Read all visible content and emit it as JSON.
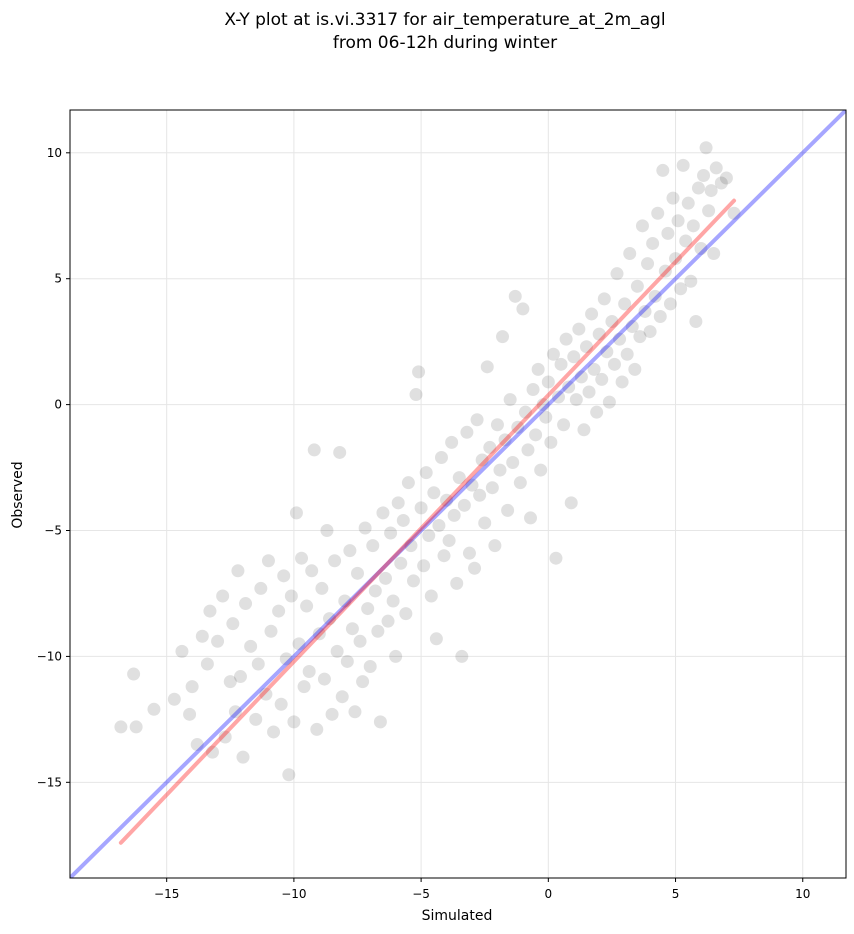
{
  "chart_data": {
    "type": "scatter",
    "title": "X-Y plot at is.vi.3317 for air_temperature_at_2m_agl",
    "subtitle": "from 06-12h during winter",
    "xlabel": "Simulated",
    "ylabel": "Observed",
    "xlim": [
      -18.8,
      11.7
    ],
    "ylim": [
      -18.8,
      11.7
    ],
    "xticks": [
      -15,
      -10,
      -5,
      0,
      5,
      10
    ],
    "yticks": [
      -15,
      -10,
      -5,
      0,
      5,
      10
    ],
    "xtick_labels": [
      "−15",
      "−10",
      "−5",
      "0",
      "5",
      "10"
    ],
    "ytick_labels": [
      "−15",
      "−10",
      "−5",
      "0",
      "5",
      "10"
    ],
    "grid": true,
    "colors": {
      "points": "#000000",
      "regression_line": "#ff0000",
      "identity_line": "#0000ff",
      "grid": "#e6e6e6"
    },
    "points": [
      [
        -16.8,
        -12.8
      ],
      [
        -16.3,
        -10.7
      ],
      [
        -16.2,
        -12.8
      ],
      [
        -15.5,
        -12.1
      ],
      [
        -14.7,
        -11.7
      ],
      [
        -14.4,
        -9.8
      ],
      [
        -14.1,
        -12.3
      ],
      [
        -14.0,
        -11.2
      ],
      [
        -13.8,
        -13.5
      ],
      [
        -13.6,
        -9.2
      ],
      [
        -13.4,
        -10.3
      ],
      [
        -13.3,
        -8.2
      ],
      [
        -13.2,
        -13.8
      ],
      [
        -13.0,
        -9.4
      ],
      [
        -12.8,
        -7.6
      ],
      [
        -12.7,
        -13.2
      ],
      [
        -12.5,
        -11.0
      ],
      [
        -12.4,
        -8.7
      ],
      [
        -12.3,
        -12.2
      ],
      [
        -12.2,
        -6.6
      ],
      [
        -12.1,
        -10.8
      ],
      [
        -12.0,
        -14.0
      ],
      [
        -11.9,
        -7.9
      ],
      [
        -11.7,
        -9.6
      ],
      [
        -11.5,
        -12.5
      ],
      [
        -11.4,
        -10.3
      ],
      [
        -11.3,
        -7.3
      ],
      [
        -11.1,
        -11.5
      ],
      [
        -11.0,
        -6.2
      ],
      [
        -10.9,
        -9.0
      ],
      [
        -10.8,
        -13.0
      ],
      [
        -10.6,
        -8.2
      ],
      [
        -10.5,
        -11.9
      ],
      [
        -10.4,
        -6.8
      ],
      [
        -10.3,
        -10.1
      ],
      [
        -10.2,
        -14.7
      ],
      [
        -10.1,
        -7.6
      ],
      [
        -10.0,
        -12.6
      ],
      [
        -9.9,
        -4.3
      ],
      [
        -9.8,
        -9.5
      ],
      [
        -9.7,
        -6.1
      ],
      [
        -9.6,
        -11.2
      ],
      [
        -9.5,
        -8.0
      ],
      [
        -9.4,
        -10.6
      ],
      [
        -9.3,
        -6.6
      ],
      [
        -9.2,
        -1.8
      ],
      [
        -9.1,
        -12.9
      ],
      [
        -9.0,
        -9.1
      ],
      [
        -8.9,
        -7.3
      ],
      [
        -8.8,
        -10.9
      ],
      [
        -8.7,
        -5.0
      ],
      [
        -8.6,
        -8.5
      ],
      [
        -8.5,
        -12.3
      ],
      [
        -8.4,
        -6.2
      ],
      [
        -8.3,
        -9.8
      ],
      [
        -8.2,
        -1.9
      ],
      [
        -8.1,
        -11.6
      ],
      [
        -8.0,
        -7.8
      ],
      [
        -7.9,
        -10.2
      ],
      [
        -7.8,
        -5.8
      ],
      [
        -7.7,
        -8.9
      ],
      [
        -7.6,
        -12.2
      ],
      [
        -7.5,
        -6.7
      ],
      [
        -7.4,
        -9.4
      ],
      [
        -7.3,
        -11.0
      ],
      [
        -7.2,
        -4.9
      ],
      [
        -7.1,
        -8.1
      ],
      [
        -7.0,
        -10.4
      ],
      [
        -6.9,
        -5.6
      ],
      [
        -6.8,
        -7.4
      ],
      [
        -6.7,
        -9.0
      ],
      [
        -6.6,
        -12.6
      ],
      [
        -6.5,
        -4.3
      ],
      [
        -6.4,
        -6.9
      ],
      [
        -6.3,
        -8.6
      ],
      [
        -6.2,
        -5.1
      ],
      [
        -6.1,
        -7.8
      ],
      [
        -6.0,
        -10.0
      ],
      [
        -5.9,
        -3.9
      ],
      [
        -5.8,
        -6.3
      ],
      [
        -5.7,
        -4.6
      ],
      [
        -5.6,
        -8.3
      ],
      [
        -5.5,
        -3.1
      ],
      [
        -5.4,
        -5.6
      ],
      [
        -5.3,
        -7.0
      ],
      [
        -5.2,
        0.4
      ],
      [
        -5.1,
        1.3
      ],
      [
        -5.0,
        -4.1
      ],
      [
        -4.9,
        -6.4
      ],
      [
        -4.8,
        -2.7
      ],
      [
        -4.7,
        -5.2
      ],
      [
        -4.6,
        -7.6
      ],
      [
        -4.5,
        -3.5
      ],
      [
        -4.4,
        -9.3
      ],
      [
        -4.3,
        -4.8
      ],
      [
        -4.2,
        -2.1
      ],
      [
        -4.1,
        -6.0
      ],
      [
        -4.0,
        -3.8
      ],
      [
        -3.9,
        -5.4
      ],
      [
        -3.8,
        -1.5
      ],
      [
        -3.7,
        -4.4
      ],
      [
        -3.6,
        -7.1
      ],
      [
        -3.5,
        -2.9
      ],
      [
        -3.4,
        -10.0
      ],
      [
        -3.3,
        -4.0
      ],
      [
        -3.2,
        -1.1
      ],
      [
        -3.1,
        -5.9
      ],
      [
        -3.0,
        -3.2
      ],
      [
        -2.9,
        -6.5
      ],
      [
        -2.8,
        -0.6
      ],
      [
        -2.7,
        -3.6
      ],
      [
        -2.6,
        -2.2
      ],
      [
        -2.5,
        -4.7
      ],
      [
        -2.4,
        1.5
      ],
      [
        -2.3,
        -1.7
      ],
      [
        -2.2,
        -3.3
      ],
      [
        -2.1,
        -5.6
      ],
      [
        -2.0,
        -0.8
      ],
      [
        -1.9,
        -2.6
      ],
      [
        -1.8,
        2.7
      ],
      [
        -1.7,
        -1.4
      ],
      [
        -1.6,
        -4.2
      ],
      [
        -1.5,
        0.2
      ],
      [
        -1.4,
        -2.3
      ],
      [
        -1.3,
        4.3
      ],
      [
        -1.2,
        -0.9
      ],
      [
        -1.1,
        -3.1
      ],
      [
        -1.0,
        3.8
      ],
      [
        -0.9,
        -0.3
      ],
      [
        -0.8,
        -1.8
      ],
      [
        -0.7,
        -4.5
      ],
      [
        -0.6,
        0.6
      ],
      [
        -0.5,
        -1.2
      ],
      [
        -0.4,
        1.4
      ],
      [
        -0.3,
        -2.6
      ],
      [
        -0.2,
        0.0
      ],
      [
        -0.1,
        -0.5
      ],
      [
        0.0,
        0.9
      ],
      [
        0.1,
        -1.5
      ],
      [
        0.2,
        2.0
      ],
      [
        0.3,
        -6.1
      ],
      [
        0.4,
        0.3
      ],
      [
        0.5,
        1.6
      ],
      [
        0.6,
        -0.8
      ],
      [
        0.7,
        2.6
      ],
      [
        0.8,
        0.7
      ],
      [
        0.9,
        -3.9
      ],
      [
        1.0,
        1.9
      ],
      [
        1.1,
        0.2
      ],
      [
        1.2,
        3.0
      ],
      [
        1.3,
        1.1
      ],
      [
        1.4,
        -1.0
      ],
      [
        1.5,
        2.3
      ],
      [
        1.6,
        0.5
      ],
      [
        1.7,
        3.6
      ],
      [
        1.8,
        1.4
      ],
      [
        1.9,
        -0.3
      ],
      [
        2.0,
        2.8
      ],
      [
        2.1,
        1.0
      ],
      [
        2.2,
        4.2
      ],
      [
        2.3,
        2.1
      ],
      [
        2.4,
        0.1
      ],
      [
        2.5,
        3.3
      ],
      [
        2.6,
        1.6
      ],
      [
        2.7,
        5.2
      ],
      [
        2.8,
        2.6
      ],
      [
        2.9,
        0.9
      ],
      [
        3.0,
        4.0
      ],
      [
        3.1,
        2.0
      ],
      [
        3.2,
        6.0
      ],
      [
        3.3,
        3.1
      ],
      [
        3.4,
        1.4
      ],
      [
        3.5,
        4.7
      ],
      [
        3.6,
        2.7
      ],
      [
        3.7,
        7.1
      ],
      [
        3.8,
        3.7
      ],
      [
        3.9,
        5.6
      ],
      [
        4.0,
        2.9
      ],
      [
        4.1,
        6.4
      ],
      [
        4.2,
        4.3
      ],
      [
        4.3,
        7.6
      ],
      [
        4.4,
        3.5
      ],
      [
        4.5,
        9.3
      ],
      [
        4.6,
        5.3
      ],
      [
        4.7,
        6.8
      ],
      [
        4.8,
        4.0
      ],
      [
        4.9,
        8.2
      ],
      [
        5.0,
        5.8
      ],
      [
        5.1,
        7.3
      ],
      [
        5.2,
        4.6
      ],
      [
        5.3,
        9.5
      ],
      [
        5.4,
        6.5
      ],
      [
        5.5,
        8.0
      ],
      [
        5.6,
        4.9
      ],
      [
        5.7,
        7.1
      ],
      [
        5.8,
        3.3
      ],
      [
        5.9,
        8.6
      ],
      [
        6.0,
        6.2
      ],
      [
        6.1,
        9.1
      ],
      [
        6.2,
        10.2
      ],
      [
        6.3,
        7.7
      ],
      [
        6.4,
        8.5
      ],
      [
        6.5,
        6.0
      ],
      [
        6.6,
        9.4
      ],
      [
        6.8,
        8.8
      ],
      [
        7.0,
        9.0
      ],
      [
        7.3,
        7.6
      ]
    ],
    "regression_line": [
      [
        -16.8,
        -17.4
      ],
      [
        7.3,
        8.1
      ]
    ],
    "identity_line": [
      [
        -18.8,
        -18.8
      ],
      [
        11.7,
        11.7
      ]
    ]
  }
}
